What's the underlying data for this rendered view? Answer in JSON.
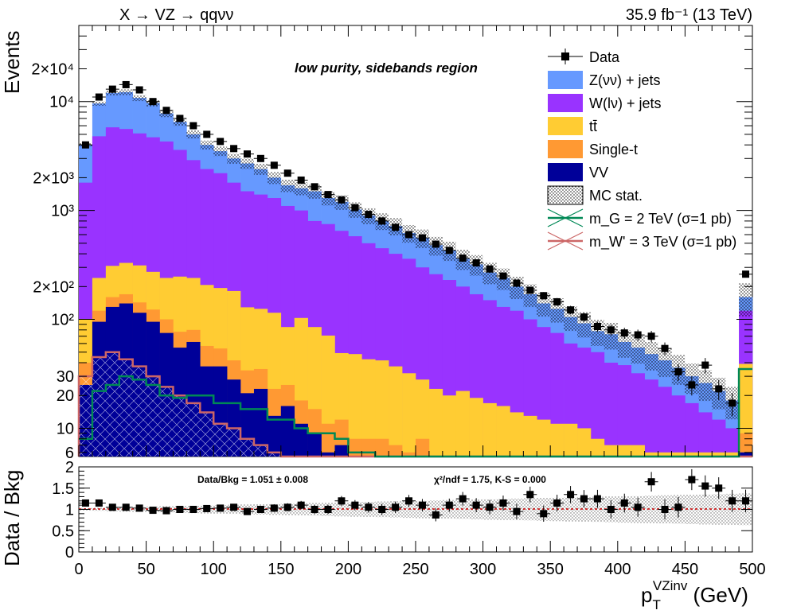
{
  "chart_data": {
    "type": "histogram",
    "title_left": "X → VZ → qqνν",
    "title_right": "35.9 fb⁻¹  (13 TeV)",
    "region_label": "low purity, sidebands region",
    "xlabel": "p_T^VZinv (GeV)",
    "xlabel_main": "p",
    "xlabel_sub": "T",
    "xlabel_sup": "VZinv",
    "xlabel_unit": " (GeV)",
    "ylabel": "Events",
    "ratio_ylabel": "Data / Bkg",
    "xlim": [
      0,
      500
    ],
    "ylim": [
      5.5,
      50000
    ],
    "yscale": "log",
    "ratio_ylim": [
      0,
      2
    ],
    "bin_width": 10,
    "x_ticks": [
      "0",
      "50",
      "100",
      "150",
      "200",
      "250",
      "300",
      "350",
      "400",
      "450",
      "500"
    ],
    "y_ticks": [
      {
        "v": 6,
        "label": "6"
      },
      {
        "v": 10,
        "label": "10"
      },
      {
        "v": 20,
        "label": "20"
      },
      {
        "v": 30,
        "label": "30"
      },
      {
        "v": 100,
        "label": "10²"
      },
      {
        "v": 200,
        "label": "2×10²"
      },
      {
        "v": 1000,
        "label": "10³"
      },
      {
        "v": 2000,
        "label": "2×10³"
      },
      {
        "v": 10000,
        "label": "10⁴"
      },
      {
        "v": 20000,
        "label": "2×10⁴"
      }
    ],
    "ratio_ticks": [
      "0",
      "0.5",
      "1",
      "1.5",
      "2"
    ],
    "legend": [
      {
        "name": "Data",
        "kind": "marker"
      },
      {
        "name": "Z(νν) + jets",
        "kind": "fill",
        "color": "#6699ff"
      },
      {
        "name": "W(lν) + jets",
        "kind": "fill",
        "color": "#9933ff"
      },
      {
        "name": "tt̄",
        "kind": "fill",
        "color": "#ffcc33"
      },
      {
        "name": "Single-t",
        "kind": "fill",
        "color": "#ff9933"
      },
      {
        "name": "VV",
        "kind": "fill",
        "color": "#000099"
      },
      {
        "name": "MC stat.",
        "kind": "hatch"
      },
      {
        "name": "m_G = 2 TeV (σ=1 pb)",
        "kind": "line",
        "color": "#008855"
      },
      {
        "name": "m_W' = 3 TeV (σ=1 pb)",
        "kind": "line",
        "color": "#cc6666"
      }
    ],
    "legend_placement": "top-right",
    "ratio_text_left": "Data/Bkg = 1.051 ± 0.008",
    "ratio_text_right": "χ²/ndf = 1.75,   K-S = 0.000",
    "stack_totals": [
      4000,
      9600,
      12000,
      12200,
      10800,
      9700,
      7800,
      6500,
      5000,
      4000,
      3500,
      3000,
      2700,
      2400,
      2000,
      1700,
      1600,
      1500,
      1300,
      1200,
      1020,
      900,
      800,
      720,
      620,
      560,
      480,
      430,
      360,
      320,
      270,
      240,
      200,
      170,
      140,
      125,
      105,
      92,
      78,
      73,
      62,
      55,
      48,
      42,
      36,
      30,
      26,
      22,
      18,
      160
    ],
    "stack": {
      "vv": [
        25,
        95,
        130,
        140,
        115,
        95,
        75,
        55,
        62,
        37,
        37,
        28,
        21,
        23,
        13,
        16,
        11,
        9,
        6,
        7,
        4,
        4,
        5,
        4,
        3,
        5,
        3,
        3,
        3,
        2,
        2,
        2,
        2,
        2,
        2,
        2,
        2,
        2,
        2,
        2,
        2,
        2,
        2,
        2,
        2,
        2,
        2,
        2,
        2,
        6
      ],
      "single_t": [
        15,
        25,
        30,
        30,
        28,
        28,
        25,
        22,
        18,
        20,
        17,
        14,
        13,
        12,
        10,
        9,
        7,
        6,
        5,
        5,
        4,
        4,
        3,
        3,
        3,
        3,
        2,
        2,
        2,
        2,
        2,
        2,
        2,
        2,
        2,
        2,
        2,
        2,
        2,
        2,
        2,
        2,
        2,
        2,
        2,
        2,
        2,
        2,
        2,
        3
      ],
      "ttbar": [
        60,
        120,
        150,
        160,
        170,
        150,
        140,
        170,
        160,
        150,
        140,
        140,
        95,
        90,
        92,
        60,
        85,
        70,
        60,
        37,
        40,
        35,
        34,
        30,
        26,
        20,
        18,
        15,
        17,
        15,
        13,
        12,
        10,
        9,
        8,
        7,
        7,
        6,
        4,
        3,
        3,
        3,
        2,
        2,
        2,
        2,
        2,
        2,
        2,
        30
      ]
    },
    "wlnu_totals": [
      1800,
      4800,
      5800,
      5600,
      5100,
      4700,
      4300,
      3600,
      2900,
      2400,
      2200,
      1800,
      1500,
      1400,
      1300,
      1100,
      1000,
      800,
      750,
      650,
      580,
      500,
      450,
      400,
      360,
      300,
      260,
      230,
      200,
      170,
      150,
      130,
      120,
      100,
      85,
      75,
      60,
      55,
      50,
      40,
      38,
      32,
      28,
      24,
      20,
      17,
      14,
      12,
      10,
      120
    ],
    "data": [
      4000,
      11000,
      13000,
      14300,
      12800,
      10000,
      8300,
      7000,
      6000,
      5000,
      4300,
      3700,
      3300,
      3000,
      2600,
      2200,
      1900,
      1650,
      1400,
      1250,
      1060,
      920,
      800,
      700,
      600,
      560,
      490,
      430,
      365,
      330,
      290,
      250,
      215,
      185,
      165,
      145,
      122,
      105,
      86,
      80,
      75,
      72,
      70,
      54,
      33,
      25,
      38,
      23,
      17,
      260
    ],
    "ratio": [
      1.15,
      1.15,
      1.05,
      1.05,
      1.03,
      0.98,
      0.97,
      1.0,
      1.0,
      1.02,
      1.03,
      1.05,
      0.95,
      1.0,
      1.03,
      1.05,
      1.1,
      1.0,
      1.0,
      1.2,
      1.1,
      1.05,
      1.0,
      1.05,
      1.2,
      1.1,
      0.87,
      1.1,
      1.25,
      1.1,
      1.05,
      1.15,
      0.95,
      1.35,
      0.9,
      1.15,
      1.35,
      1.25,
      1.25,
      1.0,
      1.15,
      1.05,
      1.65,
      1.0,
      1.05,
      1.7,
      1.55,
      1.5,
      1.2,
      1.2
    ],
    "signal_g2tev": [
      8,
      22,
      25,
      30,
      28,
      25,
      20,
      19,
      20,
      20,
      17,
      17,
      15,
      15,
      12,
      12,
      10,
      9,
      9,
      8,
      6,
      6,
      4,
      4,
      5,
      5,
      4,
      4,
      5,
      3,
      2,
      2,
      1,
      1,
      1,
      1,
      1,
      1,
      1,
      1,
      1,
      1,
      1,
      1,
      1,
      1,
      1,
      1,
      1,
      35
    ],
    "signal_w3tev": [
      30,
      45,
      50,
      43,
      37,
      30,
      24,
      20,
      17,
      14,
      11,
      10,
      8,
      7,
      6,
      5,
      4,
      4,
      3,
      3,
      2,
      2,
      2,
      2,
      1,
      1,
      1,
      1,
      1,
      1,
      1,
      1,
      1,
      1,
      1,
      1,
      1,
      1,
      1,
      1,
      1,
      1,
      1,
      1,
      1,
      1,
      1,
      1,
      1,
      1
    ]
  }
}
